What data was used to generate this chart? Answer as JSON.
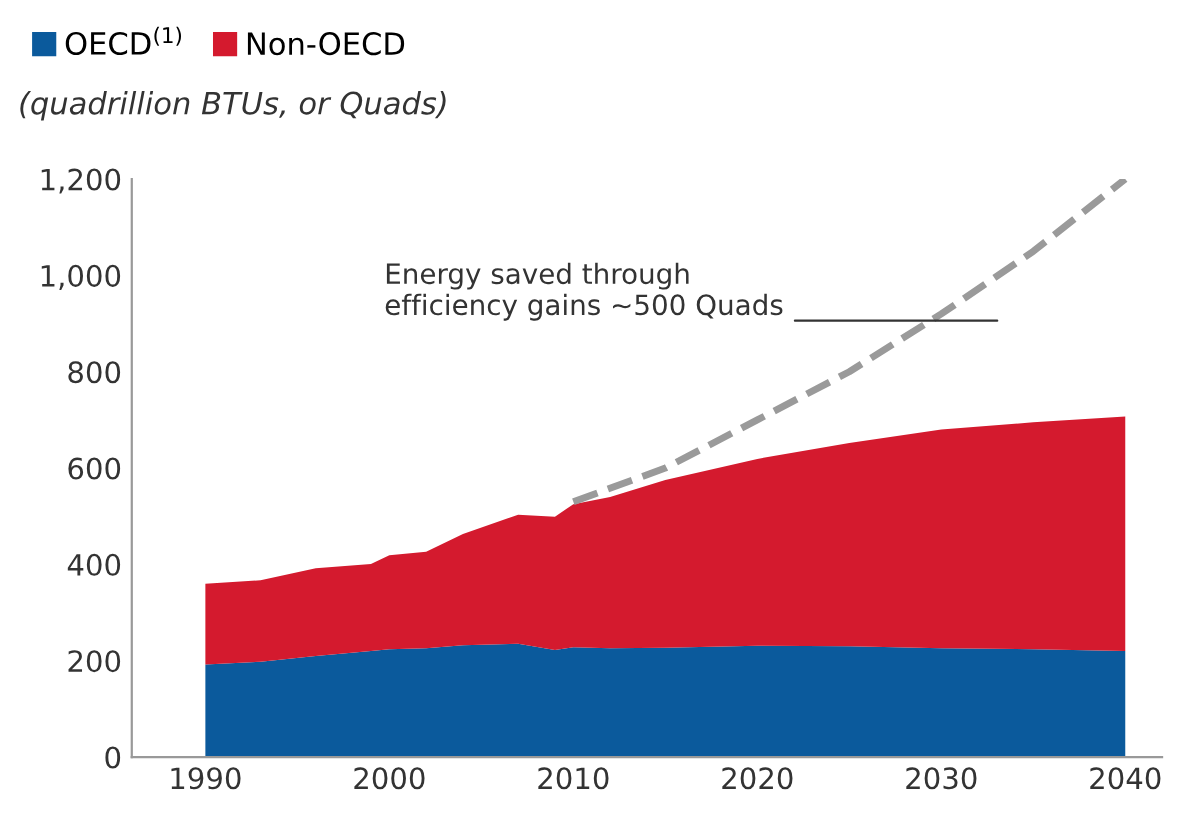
{
  "chart_data": {
    "type": "area",
    "stacked": true,
    "subtitle": "(quadrillion BTUs, or Quads)",
    "x": [
      1990,
      1993,
      1996,
      1999,
      2000,
      2002,
      2004,
      2007,
      2009,
      2010,
      2012,
      2015,
      2020,
      2025,
      2030,
      2035,
      2040
    ],
    "series": [
      {
        "name": "OECD$^{(1)}$",
        "color": "#0b5a9c",
        "values": [
          192,
          198,
          210,
          220,
          224,
          226,
          232,
          235,
          222,
          228,
          226,
          227,
          231,
          230,
          226,
          224,
          220
        ]
      },
      {
        "name": "Non-OECD",
        "color": "#d41a2e",
        "values": [
          168,
          169,
          182,
          181,
          195,
          200,
          231,
          268,
          277,
          297,
          314,
          348,
          388,
          422,
          454,
          471,
          487
        ]
      },
      {
        "type": "line",
        "color": "#9a9a9a",
        "line_style": "dashed",
        "x": [
          2010,
          2015,
          2020,
          2025,
          2030,
          2035,
          2040
        ],
        "values": [
          530,
          600,
          700,
          800,
          920,
          1050,
          1200
        ]
      }
    ],
    "annotations": [
      "Energy saved through\nefficiency gains ~500 Quads"
    ],
    "xlim": [
      1986,
      2042
    ],
    "ylim": [
      0,
      1200
    ],
    "xticks": [
      1990,
      2000,
      2010,
      2020,
      2030,
      2040
    ],
    "yticks": [
      0,
      {
        "value": 200,
        "label": "200"
      },
      {
        "value": 400,
        "label": "400"
      },
      {
        "value": 600,
        "label": "600"
      },
      {
        "value": 800,
        "label": "800"
      },
      {
        "value": 1000,
        "label": "1,000"
      },
      {
        "value": 1200,
        "label": "1,200"
      }
    ],
    "legend": "top left",
    "grid": false
  }
}
